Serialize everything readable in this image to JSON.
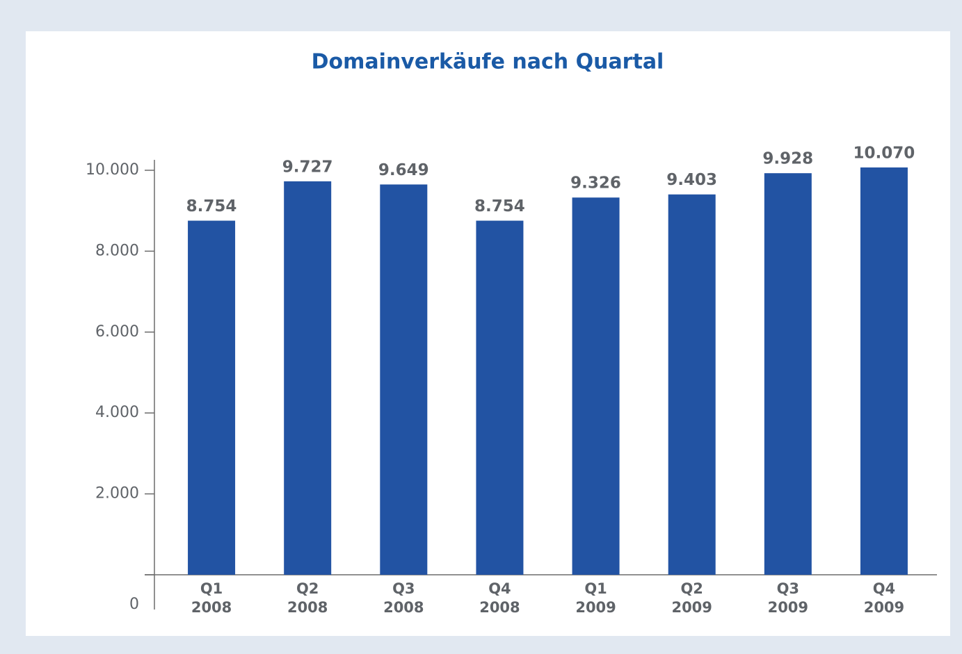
{
  "chart_data": {
    "type": "bar",
    "title": "Domainverkäufe nach Quartal",
    "categories": [
      [
        "Q1",
        "2008"
      ],
      [
        "Q2",
        "2008"
      ],
      [
        "Q3",
        "2008"
      ],
      [
        "Q4",
        "2008"
      ],
      [
        "Q1",
        "2009"
      ],
      [
        "Q2",
        "2009"
      ],
      [
        "Q3",
        "2009"
      ],
      [
        "Q4",
        "2009"
      ]
    ],
    "values": [
      8754,
      9727,
      9649,
      8754,
      9326,
      9403,
      9928,
      10070
    ],
    "value_labels": [
      "8.754",
      "9.727",
      "9.649",
      "8.754",
      "9.326",
      "9.403",
      "9.928",
      "10.070"
    ],
    "color": "#2253a3",
    "ylim": [
      0,
      11000
    ],
    "yticks": [
      0,
      {
        "value": 2000,
        "label": "2.000"
      },
      {
        "value": 4000,
        "label": "4.000"
      },
      {
        "value": 6000,
        "label": "6.000"
      },
      {
        "value": 8000,
        "label": "8.000"
      },
      {
        "value": 10000,
        "label": "10.000"
      }
    ],
    "grid": false
  }
}
